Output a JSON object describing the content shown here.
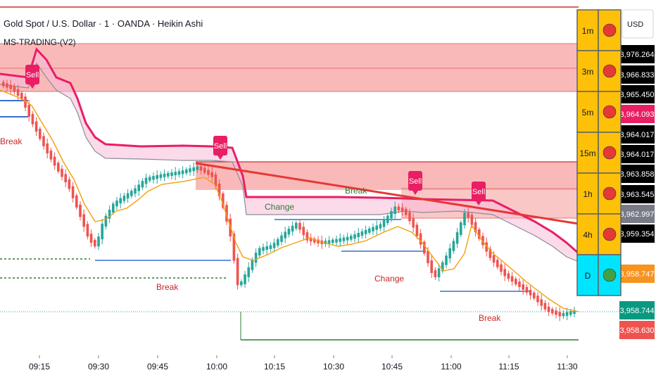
{
  "header": {
    "title": "Gold Spot / U.S. Dollar · 1 · OANDA · Heikin Ashi",
    "indicator": "MS-TRADING-(V2)"
  },
  "currency": "USD",
  "colors": {
    "bull": "#26a69a",
    "bear": "#ef5350",
    "zone_fill": "#f7a1a1",
    "zone_border": "#e57373",
    "magenta": "#e91e63",
    "ma": "#f59e0b",
    "support": "#3b6fd0",
    "green_line": "#2e7d32",
    "table_bg": "#ffc107",
    "table_cyan": "#00e5ff",
    "dot_red": "#e53935",
    "dot_green": "#43a047"
  },
  "timeframes": [
    {
      "label": "1m",
      "state": "red"
    },
    {
      "label": "3m",
      "state": "red"
    },
    {
      "label": "5m",
      "state": "red"
    },
    {
      "label": "15m",
      "state": "red"
    },
    {
      "label": "1h",
      "state": "red"
    },
    {
      "label": "4h",
      "state": "red"
    },
    {
      "label": "D",
      "state": "green"
    }
  ],
  "annotations": {
    "sell": "Sell",
    "break": "Break",
    "change": "Change"
  },
  "chart_data": {
    "type": "candlestick",
    "style": "Heikin Ashi",
    "x_ticks": [
      "09:15",
      "09:30",
      "09:45",
      "10:00",
      "10:15",
      "10:30",
      "10:45",
      "11:00",
      "11:15",
      "11:30"
    ],
    "price_labels": [
      {
        "value": "3,976.264",
        "bg": "#000000",
        "fg": "#ffffff"
      },
      {
        "value": "3,966.833",
        "bg": "#000000",
        "fg": "#ffffff"
      },
      {
        "value": "3,965.450",
        "bg": "#000000",
        "fg": "#ffffff"
      },
      {
        "value": "3,964.093",
        "bg": "#e91e63",
        "fg": "#ffffff"
      },
      {
        "value": "3,964.017",
        "bg": "#000000",
        "fg": "#ffffff"
      },
      {
        "value": "3,964.017",
        "bg": "#000000",
        "fg": "#ffffff"
      },
      {
        "value": "3,963.858",
        "bg": "#000000",
        "fg": "#ffffff"
      },
      {
        "value": "3,963.545",
        "bg": "#000000",
        "fg": "#ffffff"
      },
      {
        "value": "3,962.997",
        "bg": "#787b86",
        "fg": "#ffffff"
      },
      {
        "value": "3,959.354",
        "bg": "#000000",
        "fg": "#ffffff"
      },
      {
        "value": "3,958.747",
        "bg": "#f7931e",
        "fg": "#ffffff"
      },
      {
        "value": "3,958.744",
        "bg": "#089981",
        "fg": "#ffffff"
      },
      {
        "value": "3,958.630",
        "bg": "#ef5350",
        "fg": "#ffffff"
      }
    ],
    "grid": false
  }
}
